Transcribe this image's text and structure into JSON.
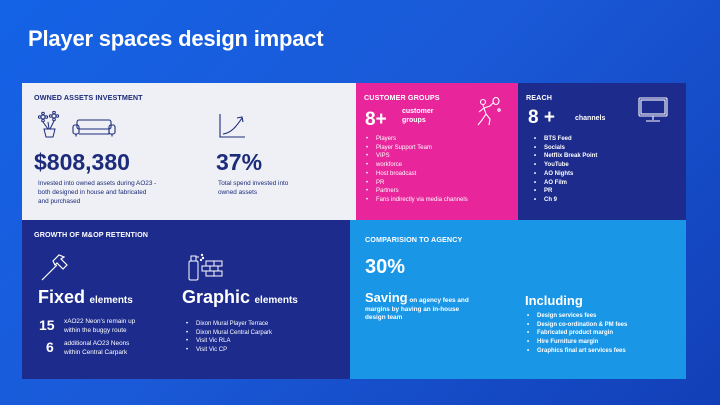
{
  "title": "Player spaces design impact",
  "colors": {
    "background": "#1a5ad8",
    "owned_panel": "#eef0f5",
    "customer_panel": "#e8259b",
    "reach_panel": "#1c2b8c",
    "growth_panel": "#1c2b8c",
    "compare_panel": "#1a96e6",
    "navy_text": "#1c2b7a"
  },
  "owned": {
    "header": "OWNED ASSETS INVESTMENT",
    "amount": "$808,380",
    "amount_desc": [
      "Invested into owned assets during AO23 -",
      "both designed in house and fabricated",
      "and purchased"
    ],
    "percent": "37%",
    "percent_desc": [
      "Total spend invested into",
      "owned assets"
    ],
    "icons": [
      "plant-icon",
      "sofa-icon",
      "growth-chart-icon"
    ]
  },
  "customer": {
    "header": "CUSTOMER GROUPS",
    "count": "8+",
    "count_label": [
      "customer",
      "groups"
    ],
    "items": [
      "Players",
      "Player Support Team",
      "VIPS",
      "workforce",
      "Host broadcast",
      "PR",
      "Partners",
      "Fans indirectly via media channels"
    ],
    "icon": "tennis-player-icon"
  },
  "reach": {
    "header": "REACH",
    "count": "8 +",
    "count_label": "channels",
    "items": [
      "BTS Feed",
      "Socials",
      "Netflix Break Point",
      "YouTube",
      "AO Nights",
      "AO Film",
      "PR",
      "Ch 9"
    ],
    "icon": "monitor-icon"
  },
  "growth": {
    "header": "GROWTH OF M&OP RETENTION",
    "fixed_word": "Fixed",
    "fixed_suffix": "elements",
    "graphic_word": "Graphic",
    "graphic_suffix": "elements",
    "stats": [
      {
        "num": "15",
        "desc": [
          "xAO22 Neon's remain up",
          "within the buggy route"
        ]
      },
      {
        "num": "6",
        "desc": [
          "additional AO23 Neons",
          "within Central Carpark"
        ]
      }
    ],
    "graphic_items": [
      "Dixon Mural Player Terrace",
      "Dixon Mural Central Carpark",
      "Visit Vic RLA",
      "Visit Vic CP"
    ],
    "icons": [
      "hammer-icon",
      "spray-paint-icon"
    ]
  },
  "compare": {
    "header": "COMPARISION TO AGENCY",
    "percent": "30%",
    "saving_word": "Saving",
    "saving_desc_1": "on agency fees and",
    "saving_desc_2": "margins by having an in-house",
    "saving_desc_3": "design team",
    "including_word": "Including",
    "items": [
      "Design services fees",
      "Design co-ordination & PM  fees",
      "Fabricated product margin",
      "Hire Furniture margin",
      "Graphics final art services fees"
    ]
  }
}
